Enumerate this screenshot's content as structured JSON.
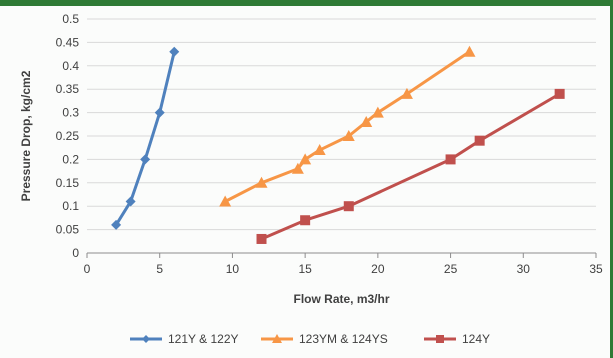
{
  "chart_data": {
    "type": "line",
    "title": "",
    "xlabel": "Flow Rate, m3/hr",
    "ylabel": "Pressure Drop, kg/cm2",
    "xlim": [
      0,
      35
    ],
    "ylim": [
      0,
      0.5
    ],
    "x_ticks": [
      "0",
      "5",
      "10",
      "15",
      "20",
      "25",
      "30",
      "35"
    ],
    "y_ticks": [
      "0",
      "0.05",
      "0.1",
      "0.15",
      "0.2",
      "0.25",
      "0.3",
      "0.35",
      "0.4",
      "0.45",
      "0.5"
    ],
    "grid": "horizontal",
    "legend_position": "bottom",
    "series": [
      {
        "name": "121Y & 122Y",
        "color": "#4f81bd",
        "marker": "diamond",
        "x": [
          2,
          3,
          4,
          5,
          6
        ],
        "y": [
          0.06,
          0.11,
          0.2,
          0.3,
          0.43
        ]
      },
      {
        "name": "123YM & 124YS",
        "color": "#f79646",
        "marker": "triangle",
        "x": [
          9.5,
          12,
          14.5,
          15,
          16,
          18,
          19.2,
          20,
          22,
          26.3
        ],
        "y": [
          0.11,
          0.15,
          0.18,
          0.2,
          0.22,
          0.25,
          0.28,
          0.3,
          0.34,
          0.43
        ]
      },
      {
        "name": "124Y",
        "color": "#c0504d",
        "marker": "square",
        "x": [
          12,
          15,
          18,
          25,
          27,
          32.5
        ],
        "y": [
          0.03,
          0.07,
          0.1,
          0.2,
          0.24,
          0.34
        ]
      }
    ]
  }
}
